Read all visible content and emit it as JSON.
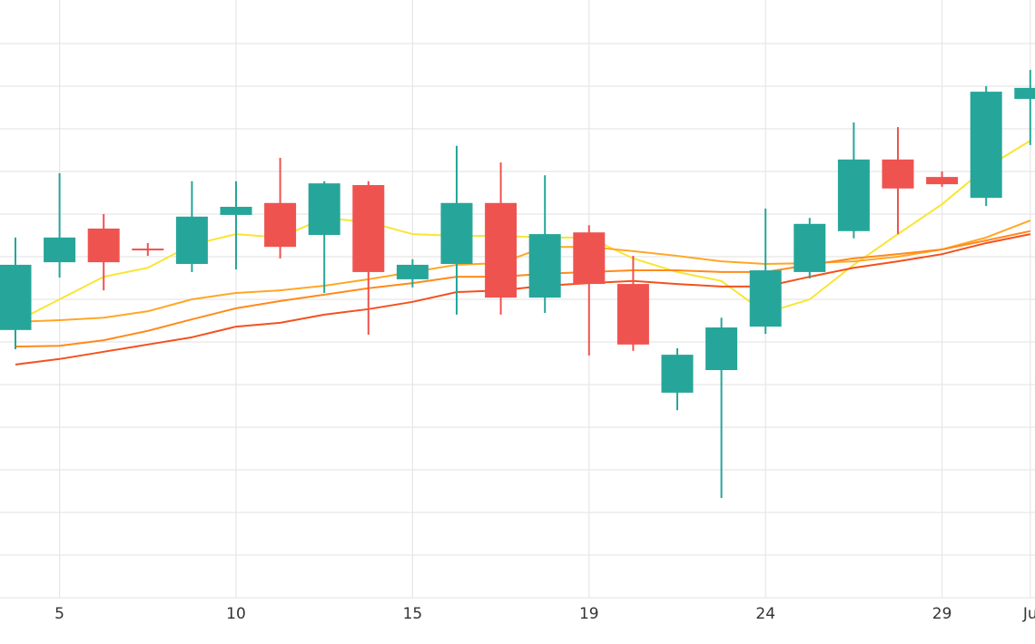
{
  "chart_data": {
    "type": "candlestick",
    "categories": [
      null,
      "5",
      null,
      null,
      null,
      "10",
      null,
      null,
      null,
      "15",
      null,
      null,
      null,
      "19",
      null,
      null,
      null,
      "24",
      null,
      null,
      null,
      "29",
      null,
      "Ju"
    ],
    "open": [
      6.28,
      7.87,
      8.66,
      8.19,
      7.83,
      8.98,
      9.26,
      8.51,
      9.68,
      7.47,
      7.83,
      9.26,
      7.04,
      8.57,
      7.36,
      4.81,
      5.34,
      6.36,
      7.64,
      8.6,
      10.28,
      9.87,
      9.38,
      11.7
    ],
    "high": [
      8.45,
      9.96,
      9.0,
      8.32,
      9.77,
      9.77,
      10.32,
      9.77,
      9.77,
      7.94,
      10.6,
      10.21,
      9.91,
      8.74,
      8.02,
      5.85,
      6.57,
      9.13,
      8.91,
      11.15,
      11.04,
      10.0,
      12.0,
      12.38
    ],
    "low": [
      5.83,
      7.51,
      7.21,
      8.02,
      7.64,
      7.7,
      7.96,
      7.15,
      6.17,
      7.28,
      6.64,
      6.64,
      6.68,
      5.68,
      5.79,
      4.4,
      2.34,
      6.19,
      7.49,
      8.43,
      8.53,
      9.64,
      9.19,
      10.62
    ],
    "close": [
      7.81,
      8.45,
      7.87,
      8.17,
      8.94,
      9.17,
      8.23,
      9.72,
      7.64,
      7.81,
      9.26,
      7.04,
      8.53,
      7.36,
      5.94,
      5.7,
      6.34,
      7.68,
      8.77,
      10.28,
      9.6,
      9.7,
      11.87,
      11.96
    ],
    "up_color": "#26a69a",
    "down_color": "#ef5350",
    "series": [
      {
        "color": "#f9e534",
        "values": [
          6.47,
          7.0,
          7.53,
          7.74,
          8.28,
          8.53,
          8.45,
          8.91,
          8.81,
          8.53,
          8.49,
          8.49,
          8.45,
          8.45,
          7.96,
          7.64,
          7.43,
          6.68,
          7.0,
          7.81,
          8.53,
          9.23,
          10.09,
          10.72
        ]
      },
      {
        "color": "#ffa726",
        "values": [
          6.47,
          6.51,
          6.57,
          6.72,
          7.0,
          7.15,
          7.21,
          7.32,
          7.47,
          7.64,
          7.81,
          7.85,
          8.23,
          8.23,
          8.13,
          8.02,
          7.89,
          7.83,
          7.85,
          7.89,
          8.0,
          8.17,
          8.45,
          8.85
        ]
      },
      {
        "color": "#ff8a1c",
        "values": [
          5.89,
          5.91,
          6.04,
          6.26,
          6.53,
          6.79,
          6.96,
          7.11,
          7.26,
          7.38,
          7.53,
          7.53,
          7.6,
          7.64,
          7.68,
          7.68,
          7.64,
          7.64,
          7.81,
          7.96,
          8.06,
          8.17,
          8.38,
          8.6
        ]
      },
      {
        "color": "#f4511e",
        "values": [
          5.47,
          5.6,
          5.77,
          5.94,
          6.11,
          6.36,
          6.45,
          6.64,
          6.77,
          6.94,
          7.17,
          7.21,
          7.32,
          7.38,
          7.43,
          7.36,
          7.3,
          7.3,
          7.53,
          7.74,
          7.89,
          8.06,
          8.32,
          8.53
        ]
      }
    ],
    "ylim": [
      0,
      14
    ],
    "yticks": [
      0,
      1,
      2,
      3,
      4,
      5,
      6,
      7,
      8,
      9,
      10,
      11,
      12,
      13
    ],
    "grid": true
  }
}
